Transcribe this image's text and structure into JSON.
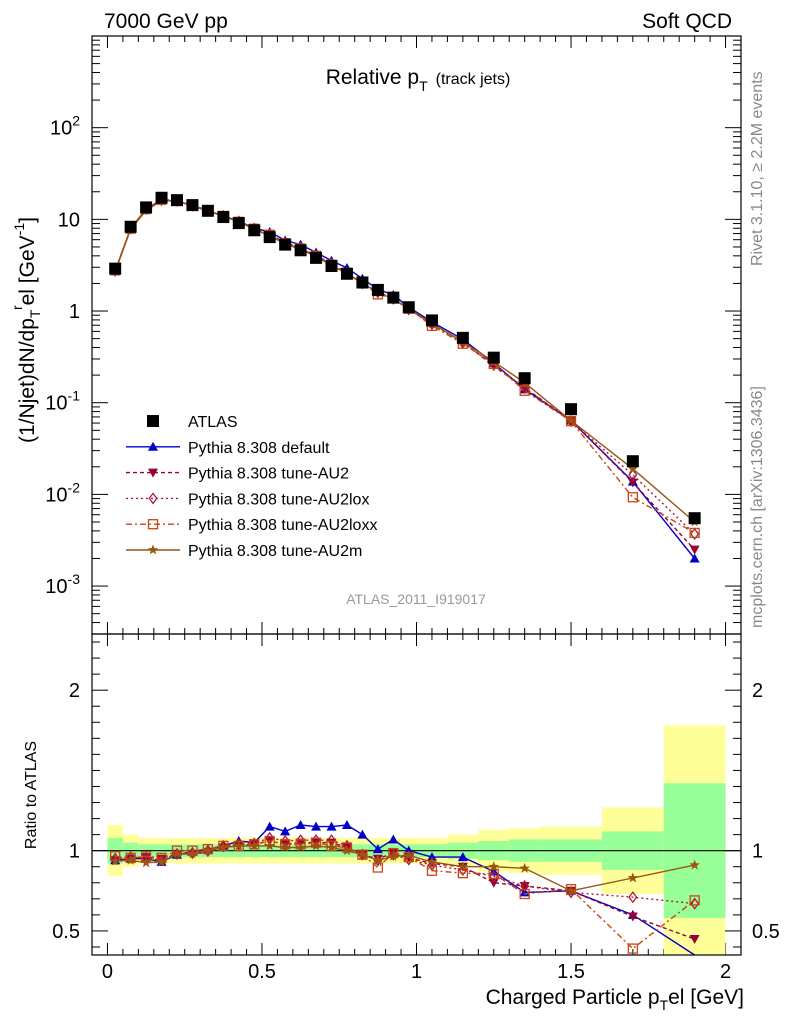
{
  "header": {
    "left": "7000 GeV pp",
    "right": "Soft QCD"
  },
  "side_labels": {
    "rivet": "Rivet 3.1.10, ≥ 2.2M events",
    "mcplots": "mcplots.cern.ch [arXiv:1306.3436]"
  },
  "chart_data": [
    {
      "type": "line",
      "panel": "main",
      "title_main": "Relative p",
      "title_sub": "T",
      "title_extra": "(track jets)",
      "xlabel": "Charged Particle p",
      "xlabel_sub": "T",
      "xlabel_tail": "el [GeV]",
      "ylabel": "(1/Njet)dN/dp",
      "ylabel_sub": "T",
      "ylabel_sup": "r",
      "ylabel_tail": "el [GeV",
      "ylabel_unit_sup": "-1",
      "ylabel_close": "]",
      "yscale": "log",
      "xlim": [
        -0.05,
        2.05
      ],
      "ylim": [
        0.0003,
        1000
      ],
      "y_ticks": [
        {
          "label": "10",
          "exp": "-3"
        },
        {
          "label": "10",
          "exp": "-2"
        },
        {
          "label": "10",
          "exp": "-1"
        },
        {
          "label": "1",
          "exp": ""
        },
        {
          "label": "10",
          "exp": ""
        },
        {
          "label": "10",
          "exp": "2"
        }
      ],
      "watermark": "ATLAS_2011_I919017",
      "x": [
        0.025,
        0.075,
        0.125,
        0.175,
        0.225,
        0.275,
        0.325,
        0.375,
        0.425,
        0.475,
        0.525,
        0.575,
        0.625,
        0.675,
        0.725,
        0.775,
        0.825,
        0.875,
        0.925,
        0.975,
        1.05,
        1.15,
        1.25,
        1.35,
        1.5,
        1.7,
        1.9
      ],
      "data": {
        "name": "ATLAS",
        "values": [
          2.9,
          8.3,
          13.5,
          17.2,
          16.2,
          14.3,
          12.4,
          10.6,
          9.1,
          7.6,
          6.4,
          5.3,
          4.6,
          3.8,
          3.1,
          2.55,
          2.05,
          1.7,
          1.4,
          1.1,
          0.79,
          0.51,
          0.31,
          0.185,
          0.085,
          0.023,
          0.0055
        ]
      },
      "series": [
        {
          "name": "Pythia 8.308 default",
          "color": "#0000cc",
          "dash": "",
          "marker": "triangle-up",
          "values": [
            2.72,
            7.9,
            12.8,
            16.0,
            15.8,
            14.2,
            12.5,
            10.9,
            9.6,
            8.0,
            7.3,
            5.9,
            5.3,
            4.35,
            3.55,
            2.95,
            2.25,
            1.72,
            1.5,
            1.1,
            0.76,
            0.49,
            0.27,
            0.14,
            0.064,
            0.0138,
            0.002
          ]
        },
        {
          "name": "Pythia 8.308 tune-AU2",
          "color": "#990033",
          "dash": "4,3",
          "marker": "triangle-down",
          "values": [
            2.72,
            7.9,
            13.0,
            16.3,
            15.9,
            14.0,
            12.3,
            10.8,
            9.4,
            7.9,
            6.8,
            5.5,
            4.85,
            4.0,
            3.25,
            2.6,
            2.0,
            1.62,
            1.38,
            1.05,
            0.73,
            0.46,
            0.25,
            0.145,
            0.064,
            0.0135,
            0.0025
          ]
        },
        {
          "name": "Pythia 8.308 tune-AU2lox",
          "color": "#aa1a3a",
          "dash": "2,3",
          "marker": "diamond-open",
          "values": [
            2.75,
            7.95,
            12.9,
            16.2,
            15.9,
            14.1,
            12.4,
            10.9,
            9.5,
            7.95,
            6.9,
            5.6,
            4.9,
            4.05,
            3.3,
            2.62,
            2.0,
            1.6,
            1.36,
            1.04,
            0.72,
            0.45,
            0.26,
            0.145,
            0.063,
            0.0163,
            0.0037
          ]
        },
        {
          "name": "Pythia 8.308 tune-AU2loxx",
          "color": "#cc4411",
          "dash": "6,3,2,3",
          "marker": "square-open",
          "values": [
            2.8,
            7.9,
            13.0,
            16.4,
            16.2,
            14.3,
            12.5,
            10.9,
            9.4,
            7.9,
            6.8,
            5.5,
            4.8,
            4.0,
            3.2,
            2.6,
            2.0,
            1.52,
            1.38,
            1.06,
            0.69,
            0.44,
            0.265,
            0.135,
            0.063,
            0.0093,
            0.0038
          ]
        },
        {
          "name": "Pythia 8.308 tune-AU2m",
          "color": "#995511",
          "dash": "",
          "marker": "star",
          "values": [
            2.7,
            7.8,
            12.5,
            16.0,
            15.9,
            14.0,
            12.4,
            10.8,
            9.4,
            7.8,
            6.6,
            5.4,
            4.7,
            3.9,
            3.15,
            2.55,
            2.0,
            1.6,
            1.35,
            1.07,
            0.73,
            0.46,
            0.28,
            0.165,
            0.064,
            0.019,
            0.005
          ]
        }
      ]
    },
    {
      "type": "line",
      "panel": "ratio",
      "ylabel": "Ratio to ATLAS",
      "ylim": [
        0.35,
        2.35
      ],
      "xlim": [
        -0.05,
        2.05
      ],
      "y_ticks": [
        "0.5",
        "1",
        "2"
      ],
      "x_ticks": [
        "0",
        "0.5",
        "1",
        "1.5",
        "2"
      ],
      "bands": {
        "edges": [
          0,
          0.05,
          0.1,
          0.2,
          0.3,
          0.4,
          0.5,
          0.6,
          0.7,
          0.8,
          0.9,
          1.0,
          1.1,
          1.2,
          1.3,
          1.4,
          1.6,
          1.8,
          2.0
        ],
        "green": [
          0.08,
          0.05,
          0.04,
          0.04,
          0.04,
          0.04,
          0.04,
          0.04,
          0.04,
          0.04,
          0.04,
          0.04,
          0.05,
          0.06,
          0.07,
          0.07,
          0.12,
          0.42
        ],
        "yellow": [
          0.16,
          0.1,
          0.08,
          0.08,
          0.08,
          0.08,
          0.08,
          0.08,
          0.08,
          0.08,
          0.08,
          0.08,
          0.1,
          0.13,
          0.14,
          0.15,
          0.27,
          0.78
        ]
      },
      "series": [
        {
          "name": "Pythia 8.308 default",
          "values": [
            0.94,
            0.95,
            0.95,
            0.93,
            0.975,
            0.993,
            1.01,
            1.03,
            1.06,
            1.05,
            1.15,
            1.12,
            1.16,
            1.15,
            1.15,
            1.16,
            1.1,
            1.01,
            1.07,
            1.0,
            0.96,
            0.96,
            0.87,
            0.74,
            0.75,
            0.6,
            0.33
          ]
        },
        {
          "name": "Pythia 8.308 tune-AU2",
          "values": [
            0.94,
            0.95,
            0.96,
            0.95,
            0.98,
            0.98,
            0.99,
            1.02,
            1.03,
            1.04,
            1.06,
            1.04,
            1.05,
            1.05,
            1.05,
            1.02,
            0.975,
            0.95,
            0.985,
            0.955,
            0.92,
            0.9,
            0.8,
            0.78,
            0.75,
            0.59,
            0.45
          ]
        },
        {
          "name": "Pythia 8.308 tune-AU2lox",
          "values": [
            0.95,
            0.96,
            0.955,
            0.94,
            0.98,
            0.985,
            1.0,
            1.03,
            1.04,
            1.045,
            1.08,
            1.06,
            1.065,
            1.065,
            1.065,
            1.03,
            0.975,
            0.94,
            0.975,
            0.945,
            0.91,
            0.88,
            0.84,
            0.78,
            0.74,
            0.71,
            0.67
          ]
        },
        {
          "name": "Pythia 8.308 tune-AU2loxx",
          "values": [
            0.965,
            0.955,
            0.965,
            0.955,
            1.0,
            1.0,
            1.01,
            1.03,
            1.03,
            1.04,
            1.06,
            1.04,
            1.04,
            1.05,
            1.03,
            1.02,
            0.975,
            0.895,
            0.985,
            0.96,
            0.875,
            0.86,
            0.855,
            0.73,
            0.76,
            0.39,
            0.69
          ]
        },
        {
          "name": "Pythia 8.308 tune-AU2m",
          "values": [
            0.935,
            0.94,
            0.925,
            0.93,
            0.98,
            0.98,
            1.0,
            1.02,
            1.03,
            1.03,
            1.03,
            1.02,
            1.02,
            1.03,
            1.02,
            1.0,
            0.975,
            0.94,
            0.965,
            0.97,
            0.93,
            0.9,
            0.9,
            0.89,
            0.75,
            0.83,
            0.91
          ]
        }
      ]
    }
  ]
}
